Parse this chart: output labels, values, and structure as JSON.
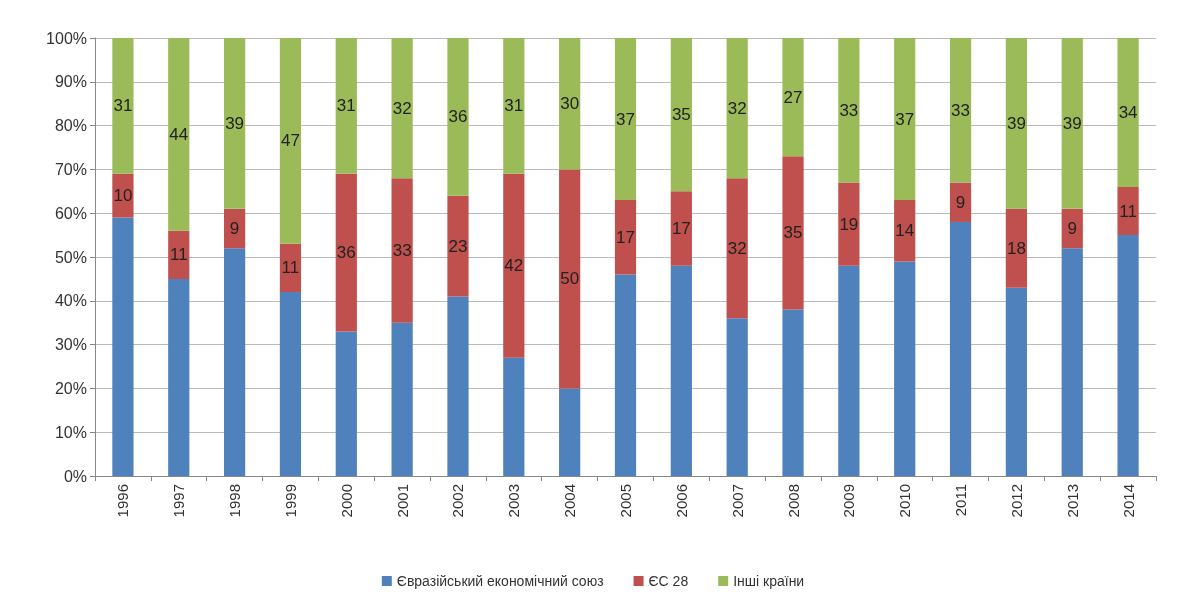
{
  "chart_data": {
    "type": "bar",
    "stacked": true,
    "categories": [
      "1996",
      "1997",
      "1998",
      "1999",
      "2000",
      "2001",
      "2002",
      "2003",
      "2004",
      "2005",
      "2006",
      "2007",
      "2008",
      "2009",
      "2010",
      "2011",
      "2012",
      "2013",
      "2014"
    ],
    "series": [
      {
        "name": "Євразійський економічний союз",
        "color": "#4f81bd",
        "values": [
          59,
          45,
          52,
          42,
          33,
          35,
          41,
          27,
          20,
          46,
          48,
          36,
          38,
          48,
          49,
          58,
          43,
          52,
          55
        ]
      },
      {
        "name": "ЄС 28",
        "color": "#c0504d",
        "values": [
          10,
          11,
          9,
          11,
          36,
          33,
          23,
          42,
          50,
          17,
          17,
          32,
          35,
          19,
          14,
          9,
          18,
          9,
          11
        ],
        "value_labels": [
          "10",
          "11",
          "9",
          "11",
          "36",
          "33",
          "23",
          "42",
          "50",
          "17",
          "17",
          "32",
          "35",
          "19",
          "14",
          "9",
          "18",
          "9",
          "11"
        ]
      },
      {
        "name": "Інші країни",
        "color": "#9bbb59",
        "values": [
          31,
          44,
          39,
          47,
          31,
          32,
          36,
          31,
          30,
          37,
          35,
          32,
          27,
          33,
          37,
          33,
          39,
          39,
          34
        ],
        "value_labels": [
          "31",
          "44",
          "39",
          "47",
          "31",
          "32",
          "36",
          "31",
          "30",
          "37",
          "35",
          "32",
          "27",
          "33",
          "37",
          "33",
          "39",
          "39",
          "34"
        ]
      }
    ],
    "ylim": [
      0,
      100
    ],
    "yticks": [
      {
        "value": 0,
        "label": "0%"
      },
      {
        "value": 10,
        "label": "10%"
      },
      {
        "value": 20,
        "label": "20%"
      },
      {
        "value": 30,
        "label": "30%"
      },
      {
        "value": 40,
        "label": "40%"
      },
      {
        "value": 50,
        "label": "50%"
      },
      {
        "value": 60,
        "label": "60%"
      },
      {
        "value": 70,
        "label": "70%"
      },
      {
        "value": 80,
        "label": "80%"
      },
      {
        "value": 90,
        "label": "90%"
      },
      {
        "value": 100,
        "label": "100%"
      }
    ],
    "grid": "y",
    "legend": "bottom"
  }
}
